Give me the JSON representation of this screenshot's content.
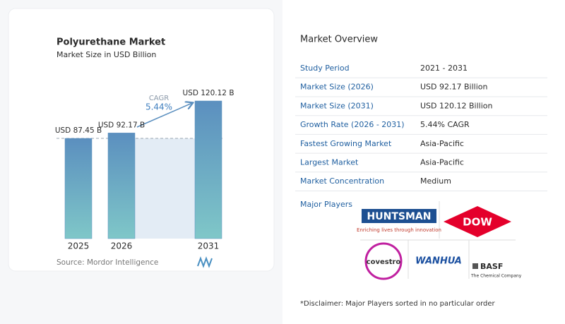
{
  "chart_data": {
    "type": "bar",
    "title": "Polyurethane Market",
    "subtitle": "Market Size in USD Billion",
    "categories": [
      "2025",
      "2026",
      "2031"
    ],
    "values": [
      87.45,
      92.17,
      120.12
    ],
    "value_labels": [
      "USD 87.45 B",
      "USD 92.17 B",
      "USD 120.12 B"
    ],
    "color": "#5b8fbf",
    "annotation": {
      "label": "CAGR",
      "value": "5.44%"
    },
    "source": "Source: Mordor Intelligence"
  },
  "overview": {
    "title": "Market Overview",
    "rows": [
      [
        "Study Period",
        "2021 - 2031"
      ],
      [
        "Market Size (2026)",
        "USD 92.17 Billion"
      ],
      [
        "Market Size (2031)",
        "USD 120.12 Billion"
      ],
      [
        "Growth Rate (2026 - 2031)",
        "5.44% CAGR"
      ],
      [
        "Fastest Growing Market",
        "Asia-Pacific"
      ],
      [
        "Largest Market",
        "Asia-Pacific"
      ],
      [
        "Market Concentration",
        "Medium"
      ]
    ],
    "major_players_title": "Major Players",
    "major_players": [
      {
        "name": "HUNTSMAN",
        "tagline": "Enriching lives through innovation"
      },
      {
        "name": "DOW"
      },
      {
        "name": "covestro"
      },
      {
        "name": "WANHUA"
      },
      {
        "name": "BASF",
        "tagline": "The Chemical Company"
      }
    ],
    "disclaimer": "*Disclaimer: Major Players sorted in no particular order"
  }
}
